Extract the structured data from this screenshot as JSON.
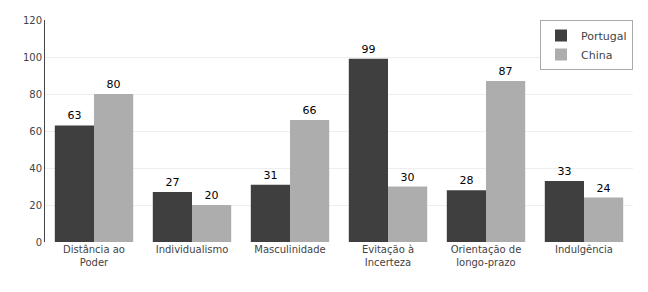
{
  "chart_data": {
    "type": "bar",
    "categories": [
      "Distância ao\nPoder",
      "Individualismo",
      "Masculinidade",
      "Evitação à\nIncerteza",
      "Orientação de\nlongo-prazo",
      "Indulgência"
    ],
    "series": [
      {
        "name": "Portugal",
        "color": "#3f3f3f",
        "values": [
          63,
          27,
          31,
          99,
          28,
          33
        ]
      },
      {
        "name": "China",
        "color": "#adadad",
        "values": [
          80,
          20,
          66,
          30,
          87,
          24
        ]
      }
    ],
    "ylim": [
      0,
      120
    ],
    "yticks": [
      0,
      20,
      40,
      60,
      80,
      100,
      120
    ],
    "grid": true,
    "legend": "upper right",
    "data_labels": true
  }
}
